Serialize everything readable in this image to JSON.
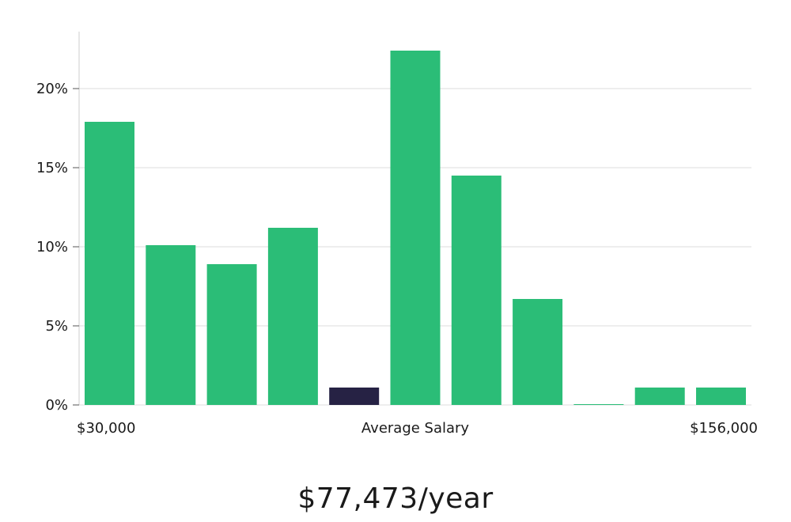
{
  "colors": {
    "bar": "#2bbd77",
    "highlight_bar": "#262244",
    "grid": "#dddddd",
    "axis": "#cccccc",
    "text": "#1a1a1a"
  },
  "chart_data": {
    "type": "bar",
    "title": "",
    "ylabel": "",
    "xlabel": "Average Salary",
    "x_min_label": "$30,000",
    "x_max_label": "$156,000",
    "ylim": [
      0,
      23.5
    ],
    "yticks": [
      0,
      5,
      10,
      15,
      20
    ],
    "ytick_labels": [
      "0%",
      "5%",
      "10%",
      "15%",
      "20%"
    ],
    "grid": true,
    "highlight_index": 4,
    "values": [
      17.9,
      10.1,
      8.9,
      11.2,
      1.1,
      22.4,
      14.5,
      6.7,
      0.05,
      1.1,
      1.1
    ]
  },
  "summary": {
    "average_salary": "$77,473/year"
  }
}
